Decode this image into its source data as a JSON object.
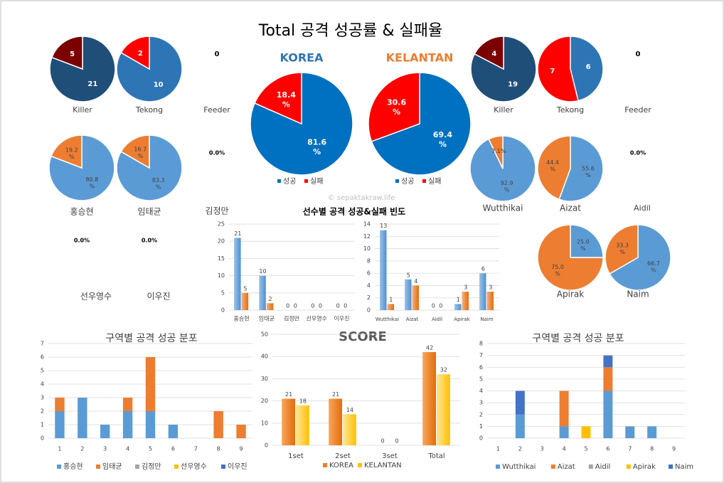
{
  "title": "Total 공격 성공률 & 실패율",
  "watermark": "© sepaktakraw.life",
  "colors": {
    "korea_blue": "#1F4E79",
    "mid_blue": "#2E75B6",
    "main_blue": "#0070C0",
    "light_blue": "#5B9BD5",
    "dark_red": "#7B0000",
    "red": "#FF0000",
    "orange": "#ED7D31",
    "yellow": "#FFC000",
    "gray": "#A5A5A5",
    "navy": "#4472C4",
    "korea_title": "#2E75B6",
    "kelantan_title": "#ED7D31"
  },
  "chart_data": [
    {
      "id": "korea-total",
      "type": "pie",
      "title": "KOREA",
      "slices": [
        {
          "label": "성공",
          "value": 81.6,
          "display": "81.6\n%"
        },
        {
          "label": "실패",
          "value": 18.4,
          "display": "18.4\n%"
        }
      ],
      "legend": [
        "성공",
        "실패"
      ]
    },
    {
      "id": "kelantan-total",
      "type": "pie",
      "title": "KELANTAN",
      "slices": [
        {
          "label": "성공",
          "value": 69.4,
          "display": "69.4\n%"
        },
        {
          "label": "실패",
          "value": 30.6,
          "display": "30.6\n%"
        }
      ],
      "legend": [
        "성공",
        "실패"
      ]
    },
    {
      "id": "korea-killer",
      "type": "pie",
      "title": "Killer",
      "slices": [
        {
          "value": 21,
          "display": "21"
        },
        {
          "value": 5,
          "display": "5"
        }
      ]
    },
    {
      "id": "korea-tekong",
      "type": "pie",
      "title": "Tekong",
      "slices": [
        {
          "value": 10,
          "display": "10"
        },
        {
          "value": 2,
          "display": "2"
        }
      ]
    },
    {
      "id": "korea-feeder",
      "type": "pie",
      "title": "Feeder",
      "slices": [],
      "empty_label": "0"
    },
    {
      "id": "kelantan-killer",
      "type": "pie",
      "title": "Killer",
      "slices": [
        {
          "value": 19,
          "display": "19"
        },
        {
          "value": 4,
          "display": "4"
        }
      ]
    },
    {
      "id": "kelantan-tekong",
      "type": "pie",
      "title": "Tekong",
      "slices": [
        {
          "value": 6,
          "display": "6"
        },
        {
          "value": 7,
          "display": "7"
        }
      ]
    },
    {
      "id": "kelantan-feeder",
      "type": "pie",
      "title": "Feeder",
      "slices": [],
      "empty_label": "0"
    },
    {
      "id": "p-hong",
      "type": "pie",
      "title": "홍승현",
      "slices": [
        {
          "value": 80.8,
          "display": "80.8\n%"
        },
        {
          "value": 19.2,
          "display": "19.2\n%"
        }
      ]
    },
    {
      "id": "p-lim",
      "type": "pie",
      "title": "임태균",
      "slices": [
        {
          "value": 83.3,
          "display": "83.3\n%"
        },
        {
          "value": 16.7,
          "display": "16.7\n%"
        }
      ]
    },
    {
      "id": "p-kim",
      "type": "pie",
      "title": "김정만",
      "slices": [],
      "empty_label": "0.0%"
    },
    {
      "id": "p-seon",
      "type": "pie",
      "title": "선우영수",
      "slices": [],
      "empty_label": "0.0%"
    },
    {
      "id": "p-lee",
      "type": "pie",
      "title": "이우진",
      "slices": [],
      "empty_label": "0.0%"
    },
    {
      "id": "p-wut",
      "type": "pie",
      "title": "Wutthikai",
      "slices": [
        {
          "value": 92.9,
          "display": "92.9\n%"
        },
        {
          "value": 7.1,
          "display": "7.1%"
        }
      ]
    },
    {
      "id": "p-aizat",
      "type": "pie",
      "title": "Aizat",
      "slices": [
        {
          "value": 55.6,
          "display": "55.6\n%"
        },
        {
          "value": 44.4,
          "display": "44.4\n%"
        }
      ]
    },
    {
      "id": "p-aidil",
      "type": "pie",
      "title": "Aidil",
      "slices": [],
      "empty_label": "0.0%"
    },
    {
      "id": "p-apirak",
      "type": "pie",
      "title": "Apirak",
      "slices": [
        {
          "value": 25.0,
          "display": "25.0\n%"
        },
        {
          "value": 75.0,
          "display": "75.0\n%"
        }
      ]
    },
    {
      "id": "p-naim",
      "type": "pie",
      "title": "Naim",
      "slices": [
        {
          "value": 66.7,
          "display": "66.7\n%"
        },
        {
          "value": 33.3,
          "display": "33.3\n%"
        }
      ]
    },
    {
      "id": "freq-korea",
      "type": "bar",
      "title": "선수별 공격 성공&실패 빈도",
      "categories": [
        "홍승현",
        "임태균",
        "김정만",
        "선우영수",
        "이우진"
      ],
      "ylim": [
        0,
        25
      ],
      "yticks": [
        0,
        5,
        10,
        15,
        20,
        25
      ],
      "series": [
        {
          "values": [
            21,
            10,
            0,
            0,
            0
          ]
        },
        {
          "values": [
            5,
            2,
            0,
            0,
            0
          ]
        }
      ]
    },
    {
      "id": "freq-kelantan",
      "type": "bar",
      "categories": [
        "Wutthikai",
        "Aizat",
        "Aidil",
        "Apirak",
        "Naim"
      ],
      "ylim": [
        0,
        14
      ],
      "yticks": [
        0,
        2,
        4,
        6,
        8,
        10,
        12,
        14
      ],
      "series": [
        {
          "values": [
            13,
            5,
            0,
            1,
            6
          ]
        },
        {
          "values": [
            1,
            4,
            0,
            3,
            3
          ]
        }
      ]
    },
    {
      "id": "zone-korea",
      "type": "bar",
      "stacked": true,
      "title": "구역별 공격 성공 분포",
      "categories": [
        "1",
        "2",
        "3",
        "4",
        "5",
        "6",
        "7",
        "8",
        "9"
      ],
      "ylim": [
        0,
        7
      ],
      "yticks": [
        0,
        1,
        2,
        3,
        4,
        5,
        6,
        7
      ],
      "series": [
        {
          "name": "홍승현",
          "values": [
            2,
            3,
            1,
            2,
            2,
            1,
            0,
            0,
            0
          ]
        },
        {
          "name": "임태균",
          "values": [
            1,
            0,
            0,
            1,
            4,
            0,
            0,
            2,
            1
          ]
        },
        {
          "name": "김정만",
          "values": [
            0,
            0,
            0,
            0,
            0,
            0,
            0,
            0,
            0
          ]
        },
        {
          "name": "선우영수",
          "values": [
            0,
            0,
            0,
            0,
            0,
            0,
            0,
            0,
            0
          ]
        },
        {
          "name": "이우진",
          "values": [
            0,
            0,
            0,
            0,
            0,
            0,
            0,
            0,
            0
          ]
        }
      ]
    },
    {
      "id": "score",
      "type": "bar",
      "title": "SCORE",
      "categories": [
        "1set",
        "2set",
        "3set",
        "Total"
      ],
      "ylim": [
        0,
        50
      ],
      "yticks": [
        0,
        10,
        20,
        30,
        40,
        50
      ],
      "series": [
        {
          "name": "KOREA",
          "values": [
            21,
            21,
            0,
            42
          ]
        },
        {
          "name": "KELANTAN",
          "values": [
            18,
            14,
            0,
            32
          ]
        }
      ]
    },
    {
      "id": "zone-kelantan",
      "type": "bar",
      "stacked": true,
      "title": "구역별 공격 성공 분포",
      "categories": [
        "1",
        "2",
        "3",
        "4",
        "5",
        "6",
        "7",
        "8",
        "9"
      ],
      "ylim": [
        0,
        8
      ],
      "yticks": [
        0,
        1,
        2,
        3,
        4,
        5,
        6,
        7,
        8
      ],
      "series": [
        {
          "name": "Wutthikai",
          "values": [
            0,
            2,
            0,
            1,
            0,
            4,
            1,
            1,
            0
          ]
        },
        {
          "name": "Aizat",
          "values": [
            0,
            0,
            0,
            3,
            0,
            2,
            0,
            0,
            0
          ]
        },
        {
          "name": "Aidil",
          "values": [
            0,
            0,
            0,
            0,
            0,
            0,
            0,
            0,
            0
          ]
        },
        {
          "name": "Apirak",
          "values": [
            0,
            0,
            0,
            0,
            1,
            0,
            0,
            0,
            0
          ]
        },
        {
          "name": "Naim",
          "values": [
            0,
            2,
            0,
            0,
            0,
            1,
            0,
            0,
            0
          ]
        }
      ]
    }
  ]
}
